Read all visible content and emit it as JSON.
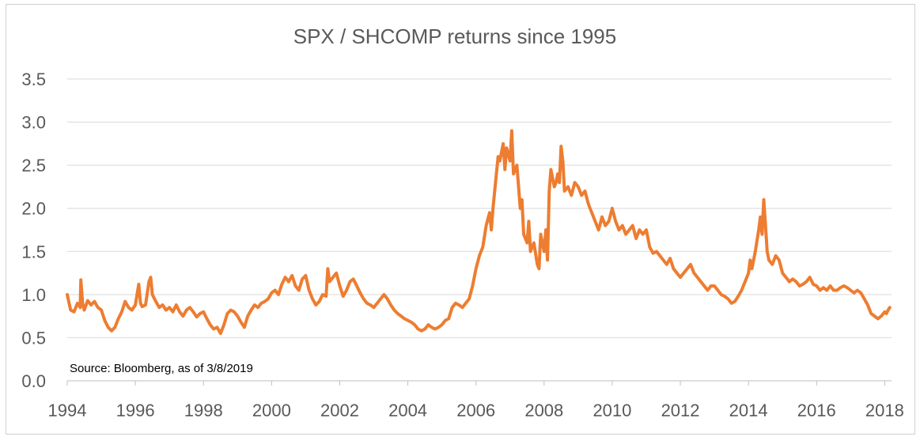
{
  "chart_data": {
    "type": "line",
    "title": "SPX / SHCOMP returns since 1995",
    "annotation": "Source: Bloomberg, as of 3/8/2019",
    "xlabel": "",
    "ylabel": "",
    "xlim": [
      1994,
      2018.2
    ],
    "ylim": [
      0,
      3.5
    ],
    "x_ticks": [
      1994,
      1996,
      1998,
      2000,
      2002,
      2004,
      2006,
      2008,
      2010,
      2012,
      2014,
      2016,
      2018
    ],
    "y_ticks": [
      "0.0",
      "0.5",
      "1.0",
      "1.5",
      "2.0",
      "2.5",
      "3.0",
      "3.5"
    ],
    "grid": true,
    "legend": "none",
    "series": [
      {
        "color": "#ED7D31",
        "points": [
          [
            1994.0,
            1.0
          ],
          [
            1994.1,
            0.82
          ],
          [
            1994.2,
            0.8
          ],
          [
            1994.3,
            0.9
          ],
          [
            1994.38,
            0.85
          ],
          [
            1994.4,
            1.17
          ],
          [
            1994.45,
            0.9
          ],
          [
            1994.5,
            0.82
          ],
          [
            1994.6,
            0.93
          ],
          [
            1994.7,
            0.88
          ],
          [
            1994.8,
            0.92
          ],
          [
            1994.9,
            0.85
          ],
          [
            1995.0,
            0.82
          ],
          [
            1995.1,
            0.7
          ],
          [
            1995.2,
            0.62
          ],
          [
            1995.3,
            0.58
          ],
          [
            1995.4,
            0.62
          ],
          [
            1995.5,
            0.72
          ],
          [
            1995.6,
            0.8
          ],
          [
            1995.7,
            0.92
          ],
          [
            1995.8,
            0.85
          ],
          [
            1995.9,
            0.82
          ],
          [
            1996.0,
            0.88
          ],
          [
            1996.1,
            1.12
          ],
          [
            1996.15,
            0.9
          ],
          [
            1996.2,
            0.86
          ],
          [
            1996.3,
            0.88
          ],
          [
            1996.4,
            1.15
          ],
          [
            1996.45,
            1.2
          ],
          [
            1996.5,
            1.0
          ],
          [
            1996.6,
            0.92
          ],
          [
            1996.7,
            0.85
          ],
          [
            1996.8,
            0.88
          ],
          [
            1996.9,
            0.82
          ],
          [
            1997.0,
            0.85
          ],
          [
            1997.1,
            0.8
          ],
          [
            1997.2,
            0.88
          ],
          [
            1997.3,
            0.8
          ],
          [
            1997.4,
            0.75
          ],
          [
            1997.5,
            0.82
          ],
          [
            1997.6,
            0.85
          ],
          [
            1997.7,
            0.8
          ],
          [
            1997.8,
            0.74
          ],
          [
            1997.9,
            0.78
          ],
          [
            1998.0,
            0.8
          ],
          [
            1998.1,
            0.72
          ],
          [
            1998.2,
            0.65
          ],
          [
            1998.3,
            0.6
          ],
          [
            1998.4,
            0.62
          ],
          [
            1998.5,
            0.55
          ],
          [
            1998.6,
            0.65
          ],
          [
            1998.7,
            0.78
          ],
          [
            1998.8,
            0.82
          ],
          [
            1998.9,
            0.8
          ],
          [
            1999.0,
            0.75
          ],
          [
            1999.1,
            0.68
          ],
          [
            1999.2,
            0.62
          ],
          [
            1999.3,
            0.75
          ],
          [
            1999.4,
            0.82
          ],
          [
            1999.5,
            0.88
          ],
          [
            1999.6,
            0.85
          ],
          [
            1999.7,
            0.9
          ],
          [
            1999.8,
            0.92
          ],
          [
            1999.9,
            0.95
          ],
          [
            2000.0,
            1.02
          ],
          [
            2000.1,
            1.05
          ],
          [
            2000.2,
            1.0
          ],
          [
            2000.3,
            1.12
          ],
          [
            2000.4,
            1.2
          ],
          [
            2000.5,
            1.15
          ],
          [
            2000.6,
            1.22
          ],
          [
            2000.7,
            1.1
          ],
          [
            2000.8,
            1.05
          ],
          [
            2000.9,
            1.18
          ],
          [
            2001.0,
            1.22
          ],
          [
            2001.1,
            1.05
          ],
          [
            2001.2,
            0.95
          ],
          [
            2001.3,
            0.88
          ],
          [
            2001.4,
            0.92
          ],
          [
            2001.5,
            1.0
          ],
          [
            2001.6,
            0.98
          ],
          [
            2001.65,
            1.3
          ],
          [
            2001.7,
            1.15
          ],
          [
            2001.8,
            1.2
          ],
          [
            2001.9,
            1.25
          ],
          [
            2002.0,
            1.1
          ],
          [
            2002.1,
            0.98
          ],
          [
            2002.2,
            1.05
          ],
          [
            2002.3,
            1.15
          ],
          [
            2002.4,
            1.18
          ],
          [
            2002.5,
            1.1
          ],
          [
            2002.6,
            1.02
          ],
          [
            2002.7,
            0.95
          ],
          [
            2002.8,
            0.9
          ],
          [
            2002.9,
            0.88
          ],
          [
            2003.0,
            0.85
          ],
          [
            2003.1,
            0.9
          ],
          [
            2003.2,
            0.95
          ],
          [
            2003.3,
            1.0
          ],
          [
            2003.4,
            0.95
          ],
          [
            2003.5,
            0.88
          ],
          [
            2003.6,
            0.82
          ],
          [
            2003.7,
            0.78
          ],
          [
            2003.8,
            0.75
          ],
          [
            2003.9,
            0.72
          ],
          [
            2004.0,
            0.7
          ],
          [
            2004.1,
            0.68
          ],
          [
            2004.2,
            0.65
          ],
          [
            2004.3,
            0.6
          ],
          [
            2004.4,
            0.58
          ],
          [
            2004.5,
            0.6
          ],
          [
            2004.6,
            0.65
          ],
          [
            2004.7,
            0.62
          ],
          [
            2004.8,
            0.6
          ],
          [
            2004.9,
            0.62
          ],
          [
            2005.0,
            0.65
          ],
          [
            2005.1,
            0.7
          ],
          [
            2005.2,
            0.72
          ],
          [
            2005.3,
            0.85
          ],
          [
            2005.4,
            0.9
          ],
          [
            2005.5,
            0.88
          ],
          [
            2005.6,
            0.85
          ],
          [
            2005.7,
            0.9
          ],
          [
            2005.8,
            0.95
          ],
          [
            2005.9,
            1.1
          ],
          [
            2006.0,
            1.3
          ],
          [
            2006.1,
            1.45
          ],
          [
            2006.2,
            1.55
          ],
          [
            2006.3,
            1.8
          ],
          [
            2006.4,
            1.95
          ],
          [
            2006.45,
            1.75
          ],
          [
            2006.5,
            2.0
          ],
          [
            2006.6,
            2.4
          ],
          [
            2006.65,
            2.6
          ],
          [
            2006.7,
            2.55
          ],
          [
            2006.8,
            2.75
          ],
          [
            2006.85,
            2.45
          ],
          [
            2006.9,
            2.7
          ],
          [
            2007.0,
            2.55
          ],
          [
            2007.05,
            2.9
          ],
          [
            2007.1,
            2.4
          ],
          [
            2007.2,
            2.5
          ],
          [
            2007.3,
            2.0
          ],
          [
            2007.35,
            2.1
          ],
          [
            2007.4,
            1.7
          ],
          [
            2007.5,
            1.6
          ],
          [
            2007.55,
            1.85
          ],
          [
            2007.6,
            1.5
          ],
          [
            2007.7,
            1.6
          ],
          [
            2007.8,
            1.35
          ],
          [
            2007.85,
            1.3
          ],
          [
            2007.9,
            1.7
          ],
          [
            2008.0,
            1.5
          ],
          [
            2008.05,
            1.75
          ],
          [
            2008.1,
            1.4
          ],
          [
            2008.15,
            2.2
          ],
          [
            2008.2,
            2.45
          ],
          [
            2008.3,
            2.25
          ],
          [
            2008.35,
            2.3
          ],
          [
            2008.4,
            2.4
          ],
          [
            2008.45,
            2.3
          ],
          [
            2008.5,
            2.72
          ],
          [
            2008.55,
            2.55
          ],
          [
            2008.6,
            2.2
          ],
          [
            2008.7,
            2.25
          ],
          [
            2008.8,
            2.15
          ],
          [
            2008.9,
            2.3
          ],
          [
            2009.0,
            2.25
          ],
          [
            2009.1,
            2.15
          ],
          [
            2009.2,
            2.2
          ],
          [
            2009.3,
            2.05
          ],
          [
            2009.4,
            1.95
          ],
          [
            2009.5,
            1.85
          ],
          [
            2009.6,
            1.75
          ],
          [
            2009.7,
            1.9
          ],
          [
            2009.8,
            1.8
          ],
          [
            2009.9,
            1.85
          ],
          [
            2010.0,
            2.0
          ],
          [
            2010.1,
            1.85
          ],
          [
            2010.2,
            1.75
          ],
          [
            2010.3,
            1.8
          ],
          [
            2010.4,
            1.7
          ],
          [
            2010.5,
            1.75
          ],
          [
            2010.6,
            1.8
          ],
          [
            2010.7,
            1.65
          ],
          [
            2010.8,
            1.75
          ],
          [
            2010.9,
            1.7
          ],
          [
            2011.0,
            1.75
          ],
          [
            2011.1,
            1.55
          ],
          [
            2011.2,
            1.48
          ],
          [
            2011.3,
            1.5
          ],
          [
            2011.4,
            1.45
          ],
          [
            2011.5,
            1.4
          ],
          [
            2011.6,
            1.35
          ],
          [
            2011.7,
            1.42
          ],
          [
            2011.8,
            1.3
          ],
          [
            2011.9,
            1.25
          ],
          [
            2012.0,
            1.2
          ],
          [
            2012.1,
            1.25
          ],
          [
            2012.2,
            1.3
          ],
          [
            2012.3,
            1.35
          ],
          [
            2012.4,
            1.25
          ],
          [
            2012.5,
            1.2
          ],
          [
            2012.6,
            1.15
          ],
          [
            2012.7,
            1.1
          ],
          [
            2012.8,
            1.05
          ],
          [
            2012.9,
            1.1
          ],
          [
            2013.0,
            1.1
          ],
          [
            2013.1,
            1.05
          ],
          [
            2013.2,
            1.0
          ],
          [
            2013.3,
            0.98
          ],
          [
            2013.4,
            0.95
          ],
          [
            2013.5,
            0.9
          ],
          [
            2013.6,
            0.92
          ],
          [
            2013.7,
            0.98
          ],
          [
            2013.8,
            1.05
          ],
          [
            2013.9,
            1.15
          ],
          [
            2014.0,
            1.25
          ],
          [
            2014.05,
            1.4
          ],
          [
            2014.1,
            1.3
          ],
          [
            2014.2,
            1.5
          ],
          [
            2014.3,
            1.75
          ],
          [
            2014.35,
            1.9
          ],
          [
            2014.4,
            1.7
          ],
          [
            2014.45,
            2.1
          ],
          [
            2014.5,
            1.8
          ],
          [
            2014.55,
            1.5
          ],
          [
            2014.6,
            1.4
          ],
          [
            2014.7,
            1.35
          ],
          [
            2014.8,
            1.45
          ],
          [
            2014.9,
            1.4
          ],
          [
            2015.0,
            1.25
          ],
          [
            2015.1,
            1.2
          ],
          [
            2015.2,
            1.15
          ],
          [
            2015.3,
            1.18
          ],
          [
            2015.4,
            1.15
          ],
          [
            2015.5,
            1.1
          ],
          [
            2015.6,
            1.12
          ],
          [
            2015.7,
            1.15
          ],
          [
            2015.8,
            1.2
          ],
          [
            2015.9,
            1.12
          ],
          [
            2016.0,
            1.1
          ],
          [
            2016.1,
            1.05
          ],
          [
            2016.2,
            1.08
          ],
          [
            2016.3,
            1.05
          ],
          [
            2016.4,
            1.1
          ],
          [
            2016.5,
            1.05
          ],
          [
            2016.6,
            1.05
          ],
          [
            2016.7,
            1.08
          ],
          [
            2016.8,
            1.1
          ],
          [
            2016.9,
            1.08
          ],
          [
            2017.0,
            1.05
          ],
          [
            2017.1,
            1.02
          ],
          [
            2017.2,
            1.05
          ],
          [
            2017.3,
            1.02
          ],
          [
            2017.4,
            0.95
          ],
          [
            2017.5,
            0.88
          ],
          [
            2017.6,
            0.78
          ],
          [
            2017.7,
            0.75
          ],
          [
            2017.8,
            0.72
          ],
          [
            2017.9,
            0.75
          ],
          [
            2018.0,
            0.8
          ],
          [
            2018.05,
            0.78
          ],
          [
            2018.1,
            0.82
          ],
          [
            2018.15,
            0.85
          ]
        ]
      }
    ]
  }
}
